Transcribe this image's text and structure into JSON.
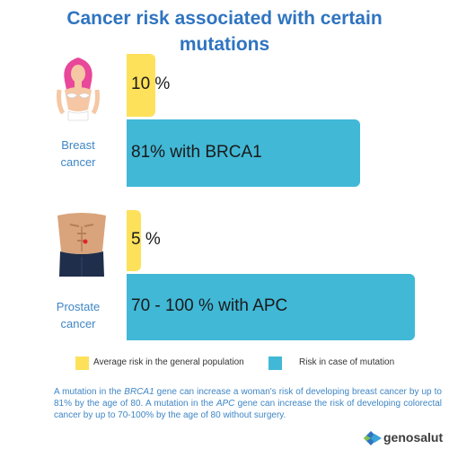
{
  "title": "Cancer risk associated with certain mutations",
  "chart_data": {
    "type": "bar",
    "orientation": "horizontal",
    "categories": [
      {
        "line1": "Breast",
        "line2": "cancer"
      },
      {
        "line1": "Prostate",
        "line2": "cancer"
      }
    ],
    "series": [
      {
        "name": "Average risk in the general population",
        "color": "#fde15a",
        "values": [
          10,
          5
        ],
        "labels": [
          "10 %",
          "5 %"
        ]
      },
      {
        "name": "Risk in case of mutation",
        "color": "#41b8d6",
        "values": [
          81,
          100
        ],
        "labels": [
          "81% with BRCA1",
          "70 - 100 % with APC"
        ]
      }
    ],
    "xlim": [
      0,
      100
    ],
    "grid": false,
    "legend_position": "bottom"
  },
  "footnote": {
    "p1": "A mutation in the ",
    "gene1": "BRCA1",
    "p2": " gene can increase a woman's risk of developing breast cancer by up to 81% by the age of 80. A mutation in the ",
    "gene2": "APC",
    "p3": " gene can increase the risk of developing colorectal cancer by up to 70-100% by the age of 80 without surgery."
  },
  "logo": {
    "text": "genosalut"
  },
  "icons": [
    "woman-figure-icon",
    "man-torso-icon",
    "genosalut-logo-icon"
  ]
}
